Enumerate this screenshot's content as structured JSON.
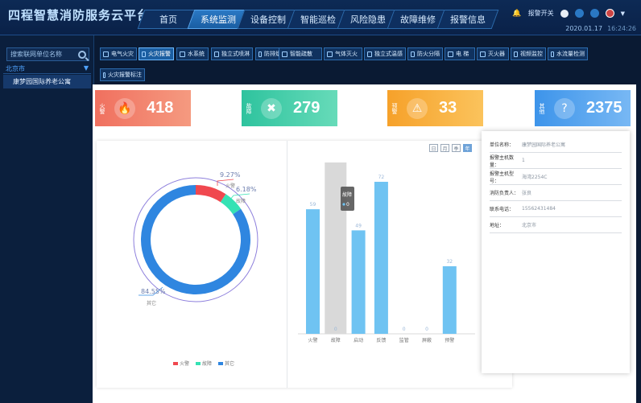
{
  "app": {
    "title": "四程智慧消防服务云平台"
  },
  "nav": [
    "首页",
    "系统监测",
    "设备控制",
    "智能巡检",
    "风险隐患",
    "故障维修",
    "报警信息"
  ],
  "nav_active": 1,
  "header_right": {
    "toggle_label": "报警开关"
  },
  "datetime": {
    "date": "2020.01.17",
    "time": "16:24:26"
  },
  "sidebar": {
    "search_placeholder": "搜索联网单位名称",
    "city": "北京市",
    "unit": "康梦园国际养老公寓"
  },
  "filters": [
    "电气火灾",
    "火灾报警",
    "水系统",
    "独立式喷淋",
    "防排烟",
    "智能疏散",
    "气体灭火",
    "独立式温感",
    "防火分隔",
    "电 梯",
    "灭火器",
    "视频监控",
    "水流量检测",
    "火灾报警标注"
  ],
  "cards": {
    "fire": {
      "tag": "火警",
      "value": "418"
    },
    "fault": {
      "tag": "故障",
      "value": "279"
    },
    "alarm": {
      "tag": "预警",
      "value": "33"
    },
    "other": {
      "tag": "其他",
      "value": "2375"
    }
  },
  "periods": [
    "日",
    "月",
    "季",
    "年"
  ],
  "donut": {
    "labels": [
      {
        "pct": "9.27%",
        "name": "火警"
      },
      {
        "pct": "6.18%",
        "name": "故障"
      },
      {
        "pct": "84.55%",
        "name": "其它"
      }
    ],
    "legend": [
      "火警",
      "故障",
      "其它"
    ]
  },
  "tooltip": {
    "title": "故障",
    "value": "0"
  },
  "info": [
    {
      "label": "单位名称：",
      "value": "康梦园国际养老公寓"
    },
    {
      "label": "报警主机数量：",
      "value": "1"
    },
    {
      "label": "报警主机型号：",
      "value": "海湾2254C"
    },
    {
      "label": "消防负责人：",
      "value": "张良"
    },
    {
      "label": "联系电话：",
      "value": "15562431484"
    },
    {
      "label": "地址：",
      "value": "北京市"
    }
  ],
  "colors": {
    "fire": "#f0484f",
    "fault": "#36e2b4",
    "other": "#2f86e0",
    "bar": "#6fc3f2",
    "highlight": "#d9d9d9"
  },
  "chart_data": [
    {
      "type": "pie",
      "subtype": "donut",
      "categories": [
        "火警",
        "故障",
        "其它"
      ],
      "values": [
        9.27,
        6.18,
        84.55
      ],
      "unit": "%"
    },
    {
      "type": "bar",
      "categories": [
        "火警",
        "故障",
        "启动",
        "反馈",
        "监管",
        "屏蔽",
        "预警"
      ],
      "values": [
        59,
        0,
        49,
        72,
        0,
        0,
        32
      ],
      "highlighted_category": "故障",
      "ylim": [
        0,
        80
      ]
    }
  ]
}
